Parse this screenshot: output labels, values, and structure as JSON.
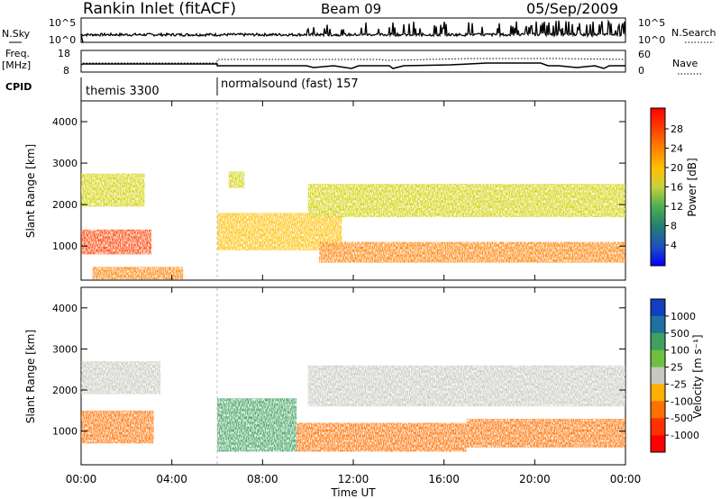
{
  "header": {
    "station": "Rankin Inlet (fitACF)",
    "beam": "Beam 09",
    "date": "05/Sep/2009"
  },
  "left_labels": {
    "nsky": "N.Sky",
    "freq_line1": "Freq.",
    "freq_line2": "[MHz]",
    "cpid": "CPID"
  },
  "right_labels": {
    "nsearch": "N.Search",
    "nave": "Nave"
  },
  "small_axes": {
    "nsky_ticks": [
      "10^5",
      "10^0"
    ],
    "nsearch_ticks": [
      "10^5",
      "10^0"
    ],
    "freq_ticks": [
      "18",
      "8"
    ],
    "nave_ticks": [
      "60",
      "0"
    ]
  },
  "cpid_segments": [
    {
      "start_hour": 0,
      "end_hour": 6,
      "label": "themis 3300"
    },
    {
      "start_hour": 6,
      "end_hour": 24,
      "label": "normalsound (fast) 157"
    }
  ],
  "power_panel": {
    "ylabel": "Slant Range [km]",
    "yticks": [
      1000,
      2000,
      3000,
      4000
    ],
    "colorbar_label": "Power [dB]",
    "colorbar_ticks": [
      "28",
      "24",
      "20",
      "16",
      "12",
      "8",
      "4"
    ],
    "colorbar_colors": [
      "#ff0000",
      "#ff4000",
      "#ff8000",
      "#ffc000",
      "#d0d000",
      "#60c040",
      "#30a060",
      "#208070",
      "#2050c0",
      "#0000ff"
    ]
  },
  "velocity_panel": {
    "ylabel": "Slant Range [km]",
    "yticks": [
      1000,
      2000,
      3000,
      4000
    ],
    "colorbar_label": "Velocity [m s⁻¹]",
    "colorbar_ticks": [
      "1000",
      "500",
      "100",
      "25",
      "-25",
      "-100",
      "-500",
      "-1000"
    ],
    "colorbar_colors": [
      "#1040c0",
      "#2070a0",
      "#40a060",
      "#70c040",
      "#c8c8c0",
      "#ffb000",
      "#ff7000",
      "#ff3000",
      "#ff0000"
    ]
  },
  "xaxis": {
    "ticks": [
      "00:00",
      "04:00",
      "08:00",
      "12:00",
      "16:00",
      "20:00",
      "00:00"
    ],
    "label": "Time UT"
  },
  "chart_data": {
    "type": "heatmap",
    "x_range_hours": [
      0,
      24
    ],
    "y_range_km": [
      180,
      4500
    ],
    "power_regions": [
      {
        "t0": 0.0,
        "t1": 2.8,
        "r0": 1950,
        "r1": 2750,
        "power_db": 18
      },
      {
        "t0": 0.0,
        "t1": 3.1,
        "r0": 800,
        "r1": 1400,
        "power_db": 26
      },
      {
        "t0": 0.5,
        "t1": 4.5,
        "r0": 200,
        "r1": 500,
        "power_db": 24
      },
      {
        "t0": 6.0,
        "t1": 11.5,
        "r0": 900,
        "r1": 1800,
        "power_db": 22
      },
      {
        "t0": 10.0,
        "t1": 24.0,
        "r0": 1700,
        "r1": 2500,
        "power_db": 18
      },
      {
        "t0": 10.5,
        "t1": 24.0,
        "r0": 600,
        "r1": 1100,
        "power_db": 24
      },
      {
        "t0": 6.5,
        "t1": 7.2,
        "r0": 2400,
        "r1": 2800,
        "power_db": 18
      }
    ],
    "velocity_regions": [
      {
        "t0": 0.0,
        "t1": 3.5,
        "r0": 1900,
        "r1": 2700,
        "velocity": 0
      },
      {
        "t0": 0.0,
        "t1": 3.2,
        "r0": 700,
        "r1": 1500,
        "velocity": -300
      },
      {
        "t0": 6.0,
        "t1": 9.5,
        "r0": 500,
        "r1": 1800,
        "velocity": 200
      },
      {
        "t0": 9.5,
        "t1": 17.0,
        "r0": 500,
        "r1": 1200,
        "velocity": -300
      },
      {
        "t0": 10.0,
        "t1": 24.0,
        "r0": 1600,
        "r1": 2600,
        "velocity": 0
      },
      {
        "t0": 17.0,
        "t1": 24.0,
        "r0": 600,
        "r1": 1300,
        "velocity": -300
      }
    ]
  }
}
